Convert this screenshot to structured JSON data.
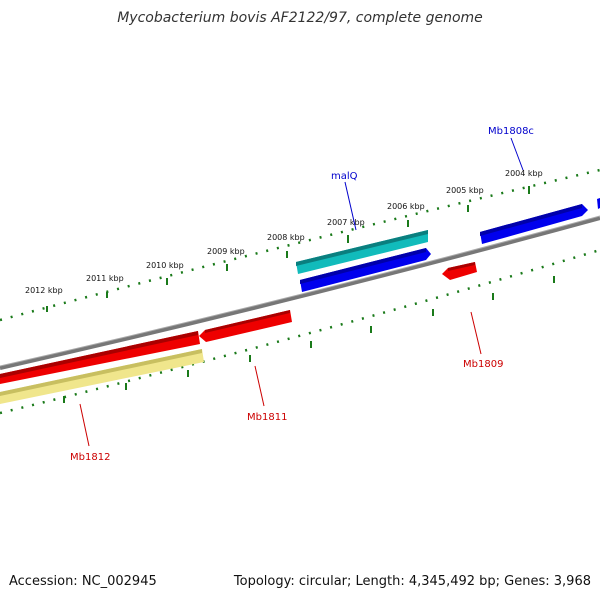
{
  "title": "Mycobacterium bovis AF2122/97, complete genome",
  "footer": {
    "accession": "Accession: NC_002945",
    "summary": "Topology: circular; Length: 4,345,492 bp; Genes: 3,968"
  },
  "scale": {
    "unit": "kbp",
    "ticks": [
      "2004 kbp",
      "2005 kbp",
      "2006 kbp",
      "2007 kbp",
      "2008 kbp",
      "2009 kbp",
      "2010 kbp",
      "2011 kbp",
      "2012 kbp"
    ]
  },
  "genes": [
    {
      "label": "Mb1808c",
      "strand": "forward",
      "color": "#0000cc"
    },
    {
      "label": "malQ",
      "strand": "forward",
      "color": "#0000cc"
    },
    {
      "label": "Mb1809",
      "strand": "reverse",
      "color": "#cc0000"
    },
    {
      "label": "Mb1811",
      "strand": "reverse",
      "color": "#cc0000"
    },
    {
      "label": "Mb1812",
      "strand": "reverse",
      "color": "#cc0000"
    }
  ],
  "colors": {
    "backbone": "#808080",
    "tick": "#1a7a1a",
    "gene_forward": "#0000ee",
    "gene_reverse": "#ee0000",
    "cds_cyan": "#11bbbb",
    "cds_yellow": "#f0e68c"
  }
}
